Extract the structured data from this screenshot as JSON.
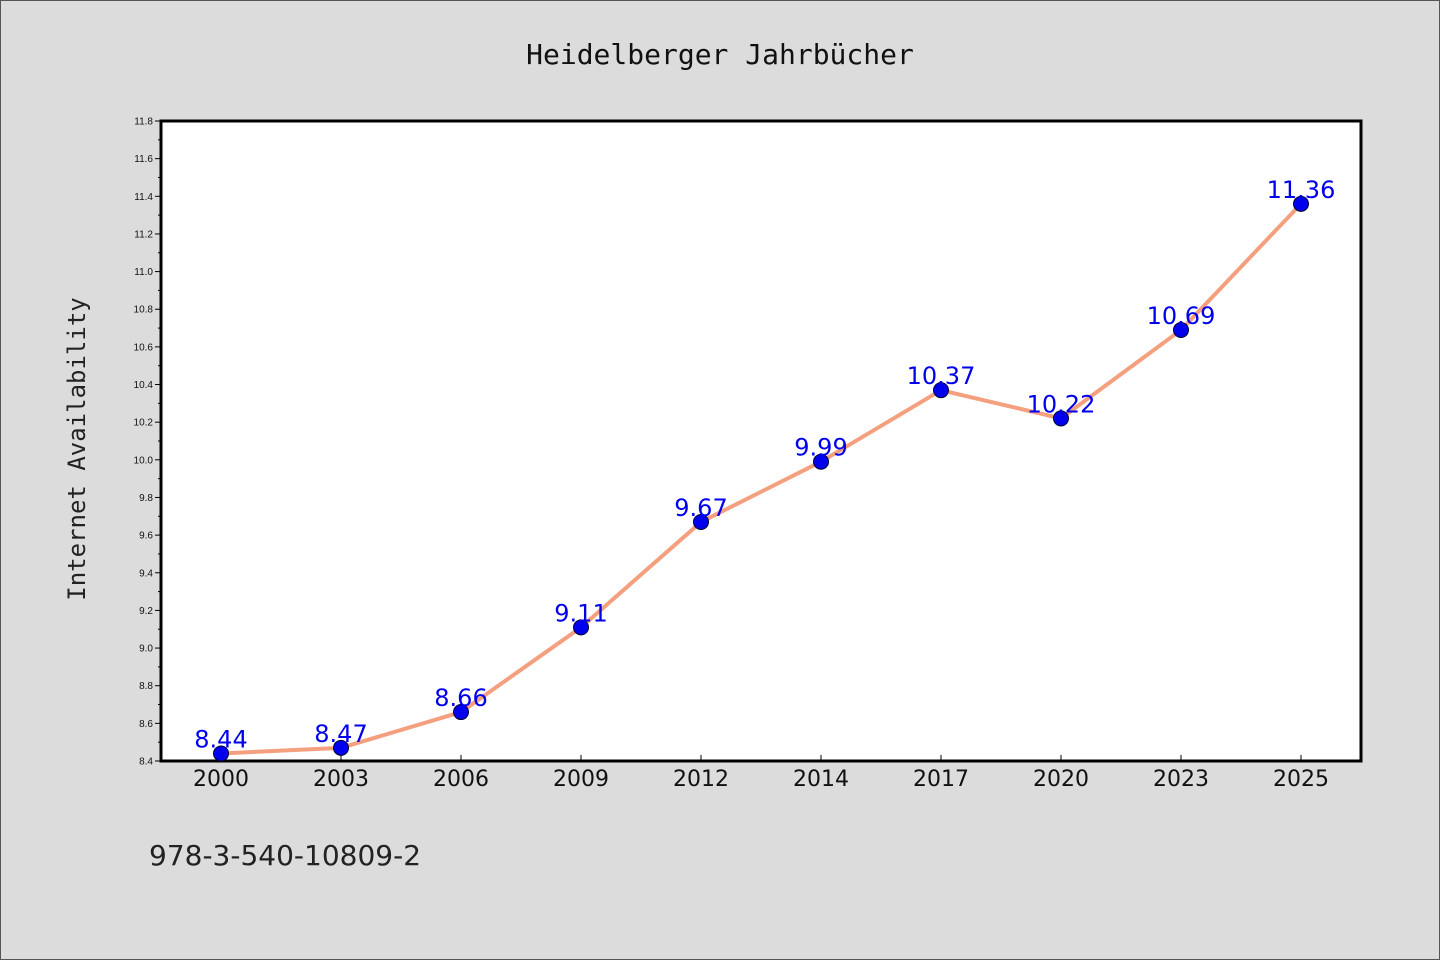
{
  "chart_data": {
    "type": "line",
    "title": "Heidelberger Jahrbücher",
    "xlabel": "",
    "ylabel": "Internet Availability",
    "categories": [
      "2000",
      "2003",
      "2006",
      "2009",
      "2012",
      "2014",
      "2017",
      "2020",
      "2023",
      "2025"
    ],
    "series": [
      {
        "values": [
          8.44,
          8.47,
          8.66,
          9.11,
          9.67,
          9.99,
          10.37,
          10.22,
          10.69,
          11.36
        ],
        "data_labels": [
          "8.44",
          "8.47",
          "8.66",
          "9.11",
          "9.67",
          "9.99",
          "10.37",
          "10.22",
          "10.69",
          "11.36"
        ]
      }
    ],
    "ylim": [
      8.4,
      11.8
    ],
    "yticks": [
      "8.4",
      "8.6",
      "8.8",
      "9.0",
      "9.2",
      "9.4",
      "9.6",
      "9.8",
      "10.0",
      "10.2",
      "10.4",
      "10.6",
      "10.8",
      "11.0",
      "11.2",
      "11.4",
      "11.6",
      "11.8"
    ],
    "grid": false,
    "legend": "none",
    "colors": {
      "line": "#f4a07f",
      "marker": "#0000ee",
      "data_label": "#0000ee",
      "background": "#dcdcdc",
      "plot_background": "#ffffff"
    }
  },
  "footer": {
    "isbn": "978-3-540-10809-2"
  }
}
